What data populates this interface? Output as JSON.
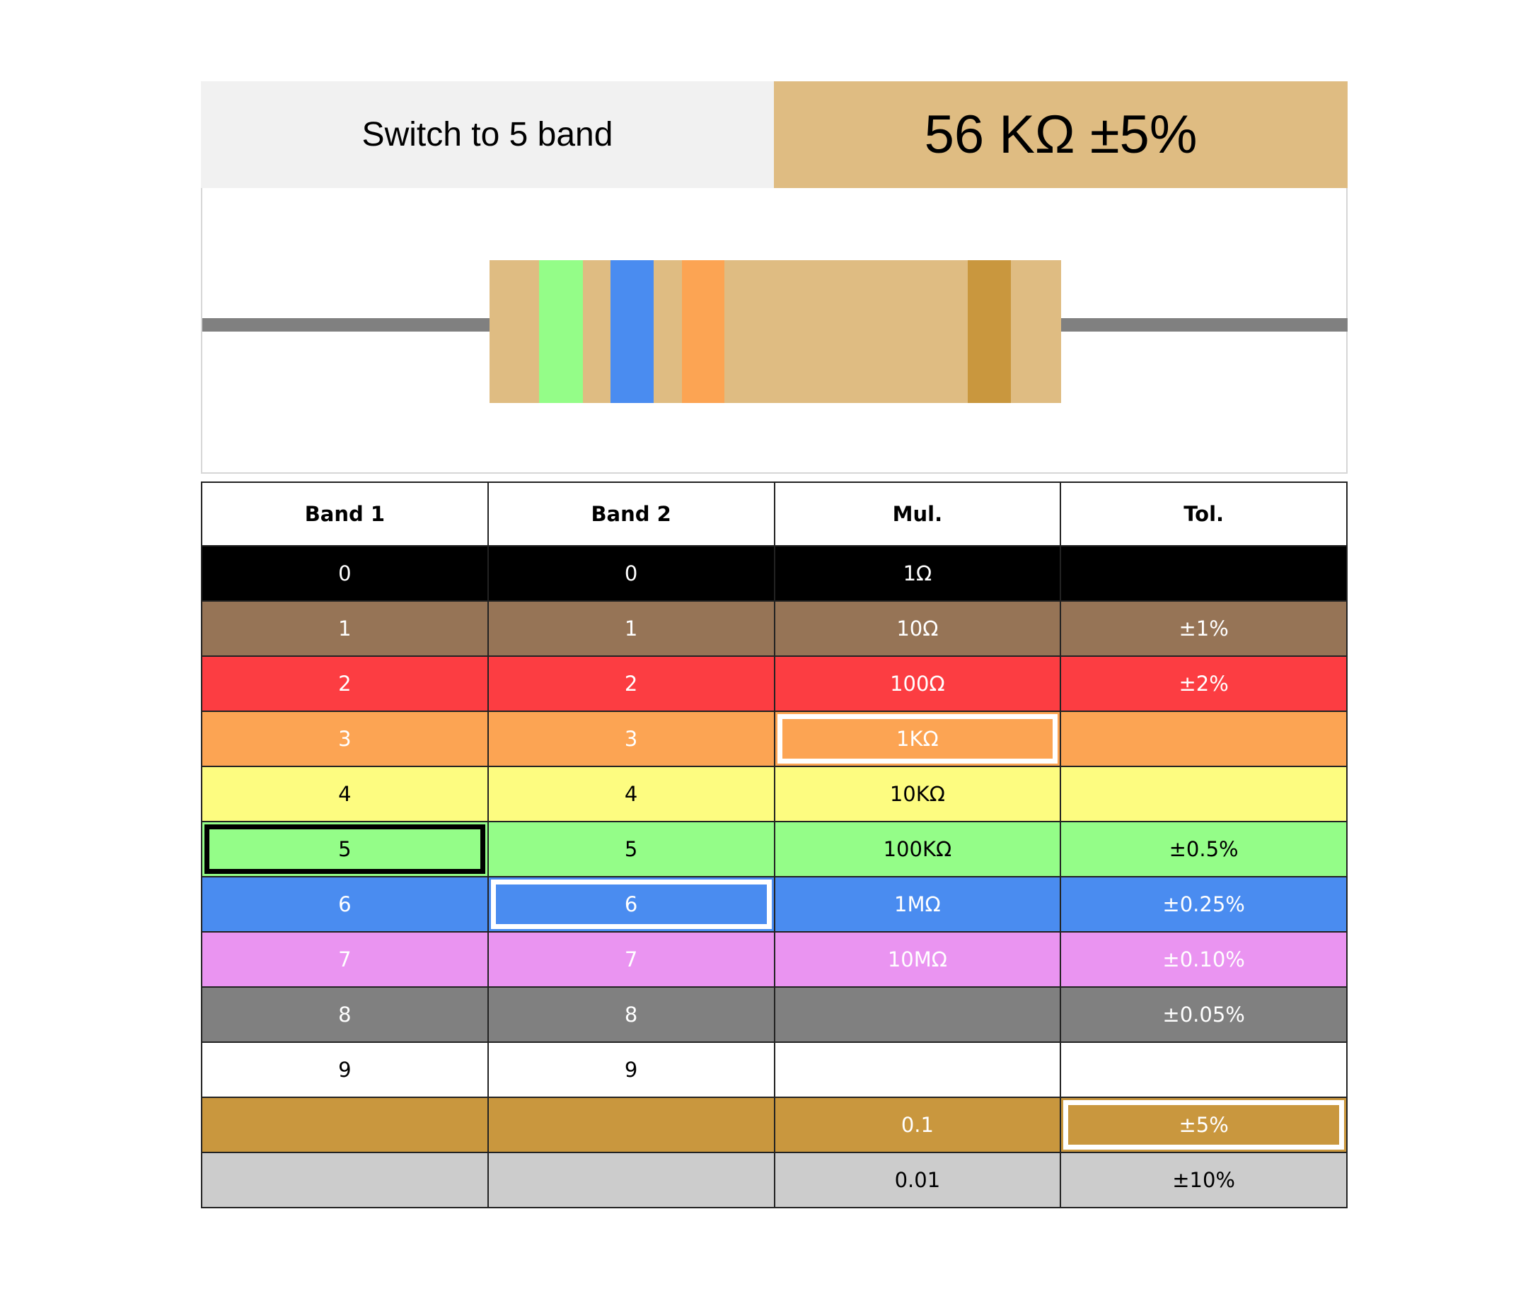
{
  "header": {
    "switch_label": "Switch to 5 band",
    "value_label": "56 KΩ ±5%"
  },
  "resistor": {
    "body_color": "#dfbc82",
    "lead_color": "#808080",
    "bands": [
      {
        "name": "band-1",
        "color": "#94fd88"
      },
      {
        "name": "band-2",
        "color": "#4a8cf0"
      },
      {
        "name": "multiplier",
        "color": "#fca453"
      },
      {
        "name": "tolerance",
        "color": "#c9973e"
      }
    ]
  },
  "table": {
    "headers": [
      "Band 1",
      "Band 2",
      "Mul.",
      "Tol."
    ],
    "rows": [
      {
        "color": "#000000",
        "text_color": "#ffffff",
        "cells": [
          "0",
          "0",
          "1Ω",
          ""
        ]
      },
      {
        "color": "#967456",
        "text_color": "#ffffff",
        "cells": [
          "1",
          "1",
          "10Ω",
          "±1%"
        ]
      },
      {
        "color": "#fc3d42",
        "text_color": "#ffffff",
        "cells": [
          "2",
          "2",
          "100Ω",
          "±2%"
        ]
      },
      {
        "color": "#fca453",
        "text_color": "#ffffff",
        "cells": [
          "3",
          "3",
          "1KΩ",
          ""
        ]
      },
      {
        "color": "#fdfc80",
        "text_color": "#000000",
        "cells": [
          "4",
          "4",
          "10KΩ",
          ""
        ]
      },
      {
        "color": "#94fd88",
        "text_color": "#000000",
        "cells": [
          "5",
          "5",
          "100KΩ",
          "±0.5%"
        ]
      },
      {
        "color": "#4a8cf0",
        "text_color": "#ffffff",
        "cells": [
          "6",
          "6",
          "1MΩ",
          "±0.25%"
        ]
      },
      {
        "color": "#ea94f1",
        "text_color": "#ffffff",
        "cells": [
          "7",
          "7",
          "10MΩ",
          "±0.10%"
        ]
      },
      {
        "color": "#808080",
        "text_color": "#ffffff",
        "cells": [
          "8",
          "8",
          "",
          "±0.05%"
        ]
      },
      {
        "color": "#ffffff",
        "text_color": "#000000",
        "cells": [
          "9",
          "9",
          "",
          ""
        ]
      },
      {
        "color": "#c9973e",
        "text_color": "#ffffff",
        "cells": [
          "",
          "",
          "0.1",
          "±5%"
        ]
      },
      {
        "color": "#cccccc",
        "text_color": "#000000",
        "cells": [
          "",
          "",
          "0.01",
          "±10%"
        ]
      }
    ],
    "selected": {
      "band1": {
        "row": 5,
        "col": 0,
        "style": "black"
      },
      "band2": {
        "row": 6,
        "col": 1,
        "style": "white"
      },
      "multiplier": {
        "row": 3,
        "col": 2,
        "style": "white"
      },
      "tolerance": {
        "row": 10,
        "col": 3,
        "style": "white"
      }
    }
  }
}
